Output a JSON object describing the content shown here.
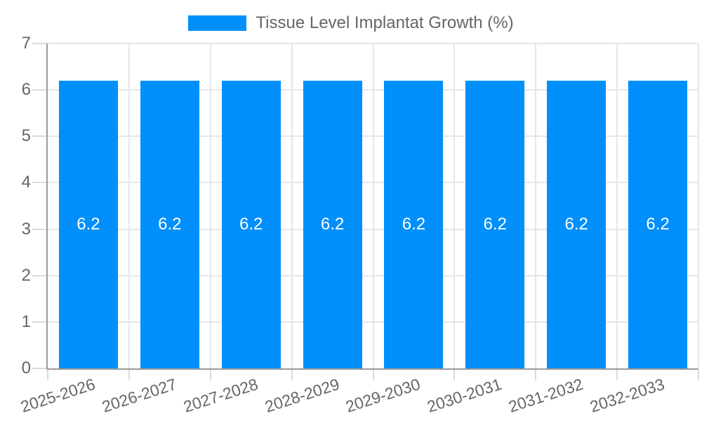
{
  "chart_data": {
    "type": "bar",
    "legend": "Tissue Level Implantat Growth (%)",
    "legend_position": "top",
    "categories": [
      "2025-2026",
      "2026-2027",
      "2027-2028",
      "2028-2029",
      "2029-2030",
      "2030-2031",
      "2031-2032",
      "2032-2033"
    ],
    "values": [
      6.2,
      6.2,
      6.2,
      6.2,
      6.2,
      6.2,
      6.2,
      6.2
    ],
    "bar_value_labels": [
      "6.2",
      "6.2",
      "6.2",
      "6.2",
      "6.2",
      "6.2",
      "6.2",
      "6.2"
    ],
    "ylim": [
      0,
      7
    ],
    "yticks": [
      0,
      1,
      2,
      3,
      4,
      5,
      6,
      7
    ],
    "grid": true,
    "colors": {
      "bar": "#008FFB",
      "bar_label_text": "#FFFFFF",
      "axis_text": "#666666",
      "grid_line": "#E6E6E6",
      "axis_line": "#9A9A9A",
      "tick_mark": "#DADADA",
      "background": "#FFFFFF"
    }
  }
}
